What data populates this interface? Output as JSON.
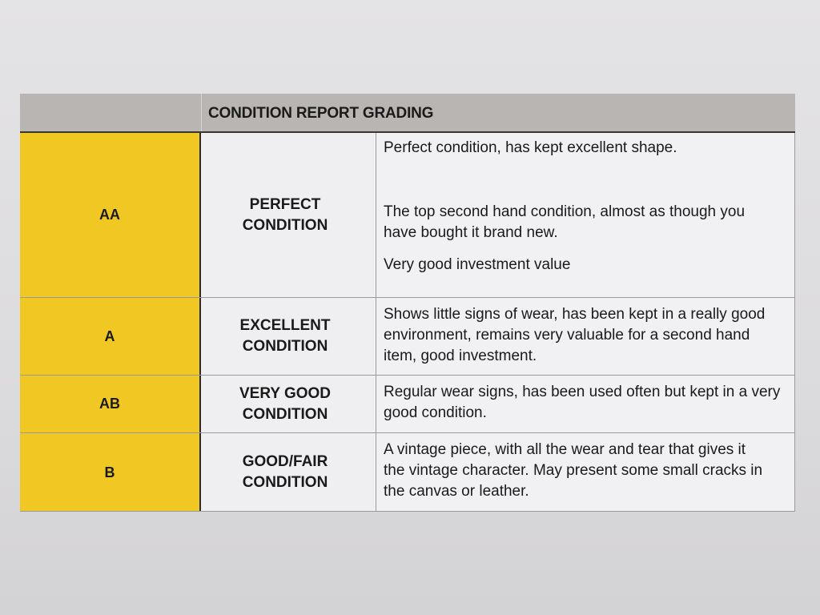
{
  "header": {
    "title": "CONDITION REPORT GRADING"
  },
  "colors": {
    "grade_fill": "#f1c823",
    "header_fill": "#b9b5b2"
  },
  "rows": [
    {
      "grade": "AA",
      "condition_line1": "PERFECT",
      "condition_line2": "CONDITION",
      "description": [
        "Perfect condition, has kept excellent shape.",
        "The top second hand condition, almost as though you have bought it brand new.",
        "Very good investment value"
      ]
    },
    {
      "grade": "A",
      "condition_line1": "EXCELLENT",
      "condition_line2": "CONDITION",
      "description": [
        "Shows little signs of wear, has been kept in a really good environment, remains very valuable for a second hand item, good investment."
      ]
    },
    {
      "grade": "AB",
      "condition_line1": "VERY GOOD",
      "condition_line2": "CONDITION",
      "description": [
        "Regular wear signs, has been used often but kept in a very good condition."
      ]
    },
    {
      "grade": "B",
      "condition_line1": "GOOD/FAIR",
      "condition_line2": "CONDITION",
      "description": [
        "A vintage piece, with all the wear and tear that gives it the vintage character. May present some small cracks in the canvas or leather."
      ]
    }
  ]
}
